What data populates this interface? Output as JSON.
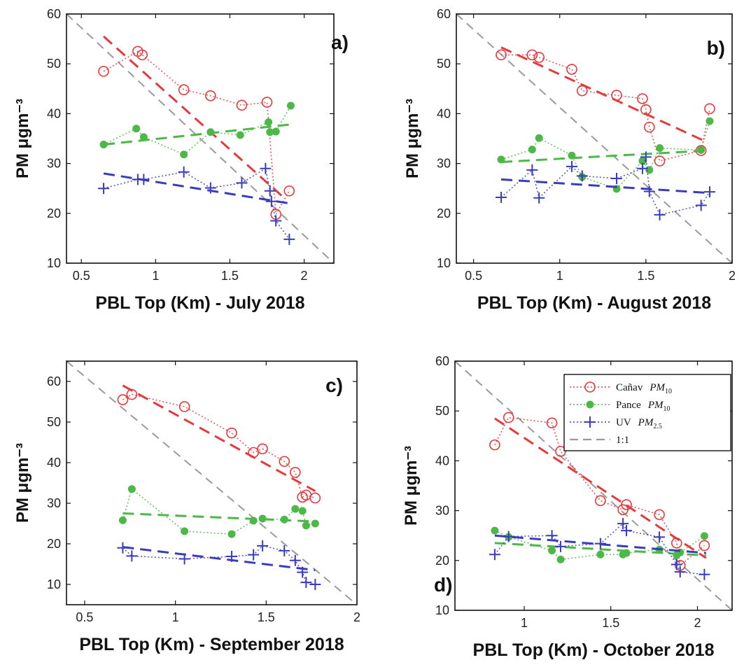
{
  "figure": {
    "legend": {
      "entries": [
        {
          "station": "Cañav",
          "pollutant": "PM",
          "sub": "10",
          "series": "canav"
        },
        {
          "station": "Pance",
          "pollutant": "PM",
          "sub": "10",
          "series": "pance"
        },
        {
          "station": "UV",
          "pollutant": "PM",
          "sub": "2.5",
          "series": "uv"
        },
        {
          "station": "1:1",
          "pollutant": "",
          "sub": "",
          "series": "oneone"
        }
      ]
    },
    "colors": {
      "canav": "#e8383b",
      "pance": "#4cb848",
      "uv": "#3a3dbb",
      "oneone": "#9a9a9a"
    }
  },
  "chart_data": [
    {
      "type": "scatter",
      "panel": "a)",
      "xlabel": "PBL Top (Km) - July 2018",
      "ylabel": "PM μgm⁻³",
      "xlim": [
        0.4,
        2.2
      ],
      "ylim": [
        10,
        60
      ],
      "xticks": [
        0.5,
        1,
        1.5,
        2
      ],
      "xtick_labels": [
        "0.5",
        "1",
        "1.5",
        "2"
      ],
      "yticks": [
        10,
        20,
        30,
        40,
        50,
        60
      ],
      "ytick_labels": [
        "10",
        "20",
        "30",
        "40",
        "50",
        "60"
      ],
      "one_to_one": [
        [
          0.4,
          60
        ],
        [
          2.2,
          10
        ]
      ],
      "series": [
        {
          "name": "Cañav PM10",
          "marker": "circle",
          "x": [
            0.65,
            0.88,
            0.91,
            1.19,
            1.37,
            1.58,
            1.75,
            1.81,
            1.9
          ],
          "y": [
            48.5,
            52.5,
            51.8,
            44.8,
            43.6,
            41.7,
            42.3,
            19.8,
            24.5
          ],
          "fit": [
            [
              0.65,
              55.5
            ],
            [
              1.85,
              23.5
            ]
          ]
        },
        {
          "name": "Pance PM10",
          "marker": "dot",
          "x": [
            0.65,
            0.87,
            0.92,
            1.19,
            1.37,
            1.57,
            1.76,
            1.77,
            1.81,
            1.91
          ],
          "y": [
            33.8,
            37,
            35.3,
            31.8,
            36.3,
            35.7,
            38.3,
            36.3,
            36.4,
            41.6
          ],
          "fit": [
            [
              0.65,
              33.8
            ],
            [
              1.9,
              37.8
            ]
          ]
        },
        {
          "name": "UV PM2.5",
          "marker": "plus",
          "x": [
            0.65,
            0.88,
            0.92,
            1.19,
            1.37,
            1.58,
            1.74,
            1.77,
            1.78,
            1.81,
            1.9
          ],
          "y": [
            25,
            26.8,
            26.8,
            28.3,
            25.1,
            26.1,
            29,
            24.5,
            22.4,
            18.5,
            14.8
          ],
          "fit": [
            [
              0.65,
              28
            ],
            [
              1.9,
              22
            ]
          ]
        }
      ]
    },
    {
      "type": "scatter",
      "panel": "b)",
      "xlabel": "PBL Top (Km) - August 2018",
      "ylabel": "PM μgm⁻³",
      "xlim": [
        0.4,
        2.0
      ],
      "ylim": [
        10,
        60
      ],
      "xticks": [
        0.5,
        1,
        1.5,
        2
      ],
      "xtick_labels": [
        "0.5",
        "1",
        "1.5",
        "2"
      ],
      "yticks": [
        10,
        20,
        30,
        40,
        50,
        60
      ],
      "ytick_labels": [
        "10",
        "20",
        "30",
        "40",
        "50",
        "60"
      ],
      "one_to_one": [
        [
          0.4,
          60
        ],
        [
          2.0,
          10
        ]
      ],
      "series": [
        {
          "name": "Cañav PM10",
          "marker": "circle",
          "x": [
            0.66,
            0.84,
            0.88,
            1.07,
            1.13,
            1.33,
            1.48,
            1.5,
            1.52,
            1.58,
            1.82,
            1.87
          ],
          "y": [
            51.8,
            51.8,
            51.3,
            48.9,
            44.6,
            43.7,
            43,
            40.8,
            37.3,
            30.5,
            32.6,
            41
          ],
          "fit": [
            [
              0.66,
              53.3
            ],
            [
              1.86,
              34.2
            ]
          ]
        },
        {
          "name": "Pance PM10",
          "marker": "dot",
          "x": [
            0.66,
            0.84,
            0.88,
            1.07,
            1.13,
            1.33,
            1.48,
            1.52,
            1.58,
            1.82,
            1.87
          ],
          "y": [
            30.8,
            32.8,
            35.1,
            31.6,
            27.3,
            24.9,
            30.5,
            28.7,
            33.1,
            32.7,
            38.5
          ],
          "fit": [
            [
              0.66,
              30.3
            ],
            [
              1.86,
              32.6
            ]
          ]
        },
        {
          "name": "UV PM2.5",
          "marker": "plus",
          "x": [
            0.66,
            0.84,
            0.88,
            1.07,
            1.13,
            1.33,
            1.48,
            1.5,
            1.52,
            1.58,
            1.82,
            1.87
          ],
          "y": [
            23.2,
            28.7,
            23.1,
            29.4,
            27.5,
            27,
            29,
            31.3,
            24.4,
            19.7,
            21.6,
            24.3
          ],
          "fit": [
            [
              0.66,
              26.8
            ],
            [
              1.86,
              24.1
            ]
          ]
        }
      ]
    },
    {
      "type": "scatter",
      "panel": "c)",
      "xlabel": "PBL Top (Km) - September 2018",
      "ylabel": "PM μgm⁻³",
      "xlim": [
        0.4,
        2.0
      ],
      "ylim": [
        5,
        65
      ],
      "xticks": [
        0.5,
        1,
        1.5,
        2
      ],
      "xtick_labels": [
        "0.5",
        "1",
        "1.5",
        "2"
      ],
      "yticks": [
        10,
        20,
        30,
        40,
        50,
        60
      ],
      "ytick_labels": [
        "10",
        "20",
        "30",
        "40",
        "50",
        "60"
      ],
      "one_to_one": [
        [
          0.4,
          65
        ],
        [
          2.0,
          5
        ]
      ],
      "series": [
        {
          "name": "Cañav PM10",
          "marker": "circle",
          "x": [
            0.71,
            0.76,
            1.05,
            1.31,
            1.43,
            1.48,
            1.6,
            1.66,
            1.7,
            1.72,
            1.77
          ],
          "y": [
            55.5,
            56.8,
            53.8,
            47.3,
            42.5,
            43.4,
            40.3,
            37.6,
            31.5,
            32,
            31.3
          ],
          "fit": [
            [
              0.71,
              59
            ],
            [
              1.77,
              33
            ]
          ]
        },
        {
          "name": "Pance PM10",
          "marker": "dot",
          "x": [
            0.71,
            0.76,
            1.05,
            1.31,
            1.43,
            1.48,
            1.6,
            1.66,
            1.7,
            1.72,
            1.77
          ],
          "y": [
            25.8,
            33.5,
            23.1,
            22.4,
            25.7,
            26.2,
            26,
            28.6,
            28.1,
            24.5,
            25
          ],
          "fit": [
            [
              0.71,
              27.5
            ],
            [
              1.77,
              25.5
            ]
          ]
        },
        {
          "name": "UV PM2.5",
          "marker": "plus",
          "x": [
            0.71,
            0.76,
            1.05,
            1.31,
            1.43,
            1.48,
            1.6,
            1.66,
            1.7,
            1.72,
            1.77
          ],
          "y": [
            19,
            17,
            16.3,
            16.9,
            17.3,
            19.5,
            18.3,
            15.9,
            13,
            10.5,
            10
          ],
          "fit": [
            [
              0.71,
              19.2
            ],
            [
              1.77,
              13.5
            ]
          ]
        }
      ]
    },
    {
      "type": "scatter",
      "panel": "d)",
      "xlabel": "PBL Top (Km) - October 2018",
      "ylabel": "PM μgm⁻³",
      "xlim": [
        0.6,
        2.2
      ],
      "ylim": [
        10,
        60
      ],
      "xticks": [
        1,
        1.5,
        2
      ],
      "xtick_labels": [
        "1",
        "1.5",
        "2"
      ],
      "yticks": [
        10,
        20,
        30,
        40,
        50,
        60
      ],
      "ytick_labels": [
        "10",
        "20",
        "30",
        "40",
        "50",
        "60"
      ],
      "one_to_one": [
        [
          0.6,
          60
        ],
        [
          2.2,
          10
        ]
      ],
      "series": [
        {
          "name": "Cañav PM10",
          "marker": "circle",
          "x": [
            0.83,
            0.91,
            1.16,
            1.21,
            1.44,
            1.57,
            1.59,
            1.78,
            1.88,
            1.9,
            2.04
          ],
          "y": [
            43.2,
            48.7,
            47.6,
            41.9,
            32,
            30.2,
            31.2,
            29.2,
            23.5,
            19,
            23
          ],
          "fit": [
            [
              0.83,
              48.5
            ],
            [
              2.05,
              20.5
            ]
          ]
        },
        {
          "name": "Pance PM10",
          "marker": "dot",
          "x": [
            0.83,
            0.91,
            1.16,
            1.21,
            1.44,
            1.57,
            1.59,
            1.78,
            1.88,
            1.9,
            2.04
          ],
          "y": [
            26,
            24.7,
            22,
            20.2,
            21.2,
            21.2,
            21.5,
            22.2,
            21.1,
            21.6,
            24.9
          ],
          "fit": [
            [
              0.83,
              23.5
            ],
            [
              2.05,
              21
            ]
          ]
        },
        {
          "name": "UV PM2.5",
          "marker": "plus",
          "x": [
            0.83,
            0.91,
            1.16,
            1.21,
            1.44,
            1.57,
            1.59,
            1.78,
            1.88,
            1.9,
            2.04
          ],
          "y": [
            21.2,
            24.8,
            25,
            22.8,
            23.4,
            27.4,
            26,
            24.7,
            19.2,
            17.7,
            17.2
          ],
          "fit": [
            [
              0.83,
              25
            ],
            [
              2.05,
              21.5
            ]
          ]
        }
      ]
    }
  ]
}
